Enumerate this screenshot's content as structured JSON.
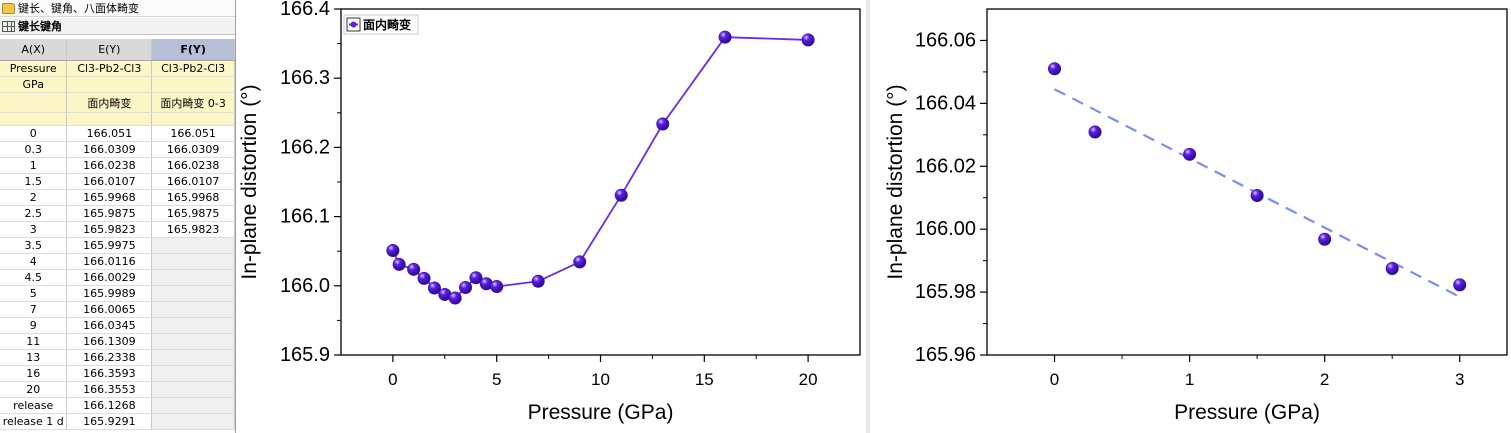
{
  "worksheet": {
    "folder_title": "键长、键角、八面体畸变",
    "sheet_name": "键长键角",
    "columns": [
      {
        "header": "A(X)",
        "long_name": "Pressure",
        "units": "GPa",
        "comment": ""
      },
      {
        "header": "E(Y)",
        "long_name": "Cl3-Pb2-Cl3",
        "units": "",
        "comment": "面内畸变"
      },
      {
        "header": "F(Y)",
        "long_name": "Cl3-Pb2-Cl3",
        "units": "",
        "comment": "面内畸变 0-3"
      }
    ],
    "rows": [
      [
        "0",
        "166.051",
        "166.051"
      ],
      [
        "0.3",
        "166.0309",
        "166.0309"
      ],
      [
        "1",
        "166.0238",
        "166.0238"
      ],
      [
        "1.5",
        "166.0107",
        "166.0107"
      ],
      [
        "2",
        "165.9968",
        "165.9968"
      ],
      [
        "2.5",
        "165.9875",
        "165.9875"
      ],
      [
        "3",
        "165.9823",
        "165.9823"
      ],
      [
        "3.5",
        "165.9975",
        ""
      ],
      [
        "4",
        "166.0116",
        ""
      ],
      [
        "4.5",
        "166.0029",
        ""
      ],
      [
        "5",
        "165.9989",
        ""
      ],
      [
        "7",
        "166.0065",
        ""
      ],
      [
        "9",
        "166.0345",
        ""
      ],
      [
        "11",
        "166.1309",
        ""
      ],
      [
        "13",
        "166.2338",
        ""
      ],
      [
        "16",
        "166.3593",
        ""
      ],
      [
        "20",
        "166.3553",
        ""
      ],
      [
        "release",
        "166.1268",
        ""
      ],
      [
        "release 1 d",
        "165.9291",
        ""
      ]
    ]
  },
  "colors": {
    "marker": "#5b1ee6",
    "line": "#6a2be8",
    "fit": "#7b8ef0",
    "selected_header": "#b7bfd8"
  },
  "chart_data": [
    {
      "type": "line",
      "xlabel": "Pressure (GPa)",
      "ylabel": "In-plane distortion (°)",
      "xlim": [
        -2.5,
        22.5
      ],
      "ylim": [
        165.9,
        166.4
      ],
      "xticks": [
        0,
        5,
        10,
        15,
        20
      ],
      "yticks": [
        165.9,
        166.0,
        166.1,
        166.2,
        166.3,
        166.4
      ],
      "yticks_labels": [
        "165.9",
        "166.0",
        "166.1",
        "166.2",
        "166.3",
        "166.4"
      ],
      "legend": {
        "label": "面内畸变",
        "placement": "top-left"
      },
      "series": [
        {
          "name": "面内畸变",
          "x": [
            0,
            0.3,
            1,
            1.5,
            2,
            2.5,
            3,
            3.5,
            4,
            4.5,
            5,
            7,
            9,
            11,
            13,
            16,
            20
          ],
          "y": [
            166.051,
            166.0309,
            166.0238,
            166.0107,
            165.9968,
            165.9875,
            165.9823,
            165.9975,
            166.0116,
            166.0029,
            165.9989,
            166.0065,
            166.0345,
            166.1309,
            166.2338,
            166.3593,
            166.3553
          ]
        }
      ]
    },
    {
      "type": "scatter",
      "xlabel": "Pressure (GPa)",
      "ylabel": "In-plane distortion (°)",
      "xlim": [
        -0.5,
        3.35
      ],
      "ylim": [
        165.96,
        166.07
      ],
      "xticks": [
        0,
        1,
        2,
        3
      ],
      "yticks": [
        165.96,
        165.98,
        166.0,
        166.02,
        166.04,
        166.06
      ],
      "yticks_labels": [
        "165.96",
        "165.98",
        "166.00",
        "166.02",
        "166.04",
        "166.06"
      ],
      "series": [
        {
          "x": [
            0,
            0.3,
            1,
            1.5,
            2,
            2.5,
            3
          ],
          "y": [
            166.051,
            166.0309,
            166.0238,
            166.0107,
            165.9968,
            165.9875,
            165.9823
          ]
        }
      ],
      "fit_line": {
        "x": [
          0,
          3
        ],
        "y": [
          166.0445,
          165.9785
        ],
        "style": "dashed"
      }
    }
  ]
}
